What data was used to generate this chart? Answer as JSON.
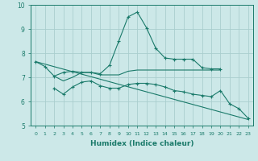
{
  "xlabel": "Humidex (Indice chaleur)",
  "ylabel": "",
  "xlim": [
    -0.5,
    23.5
  ],
  "ylim": [
    5,
    10
  ],
  "yticks": [
    5,
    6,
    7,
    8,
    9,
    10
  ],
  "xticks": [
    0,
    1,
    2,
    3,
    4,
    5,
    6,
    7,
    8,
    9,
    10,
    11,
    12,
    13,
    14,
    15,
    16,
    17,
    18,
    19,
    20,
    21,
    22,
    23
  ],
  "bg_color": "#cce8e8",
  "line_color": "#1a7a6a",
  "grid_color": "#aacece",
  "lines": [
    {
      "x": [
        0,
        1,
        2,
        3,
        4,
        5,
        6,
        7,
        8,
        9,
        10,
        11,
        12,
        13,
        14,
        15,
        16,
        17,
        18,
        19,
        20
      ],
      "y": [
        7.65,
        7.45,
        7.05,
        7.2,
        7.25,
        7.2,
        7.2,
        7.15,
        7.5,
        8.5,
        9.5,
        9.7,
        9.05,
        8.2,
        7.8,
        7.75,
        7.75,
        7.75,
        7.4,
        7.35,
        7.35
      ],
      "marker": true
    },
    {
      "x": [
        2,
        3,
        4,
        5,
        6,
        7,
        8,
        9,
        10,
        11,
        12,
        13,
        14,
        15,
        16,
        17,
        18,
        19,
        20
      ],
      "y": [
        7.05,
        6.85,
        7.0,
        7.2,
        7.2,
        7.1,
        7.1,
        7.1,
        7.25,
        7.3,
        7.3,
        7.3,
        7.3,
        7.3,
        7.3,
        7.3,
        7.3,
        7.3,
        7.3
      ],
      "marker": false
    },
    {
      "x": [
        2,
        3,
        4,
        5,
        6,
        7,
        8,
        9,
        10,
        11,
        12,
        13,
        14,
        15,
        16,
        17,
        18,
        19,
        20,
        21,
        22,
        23
      ],
      "y": [
        6.55,
        6.3,
        6.6,
        6.8,
        6.85,
        6.65,
        6.55,
        6.55,
        6.7,
        6.75,
        6.75,
        6.7,
        6.6,
        6.45,
        6.4,
        6.3,
        6.25,
        6.2,
        6.45,
        5.9,
        5.7,
        5.3
      ],
      "marker": true
    },
    {
      "x": [
        0,
        23
      ],
      "y": [
        7.65,
        5.25
      ],
      "marker": false
    }
  ]
}
